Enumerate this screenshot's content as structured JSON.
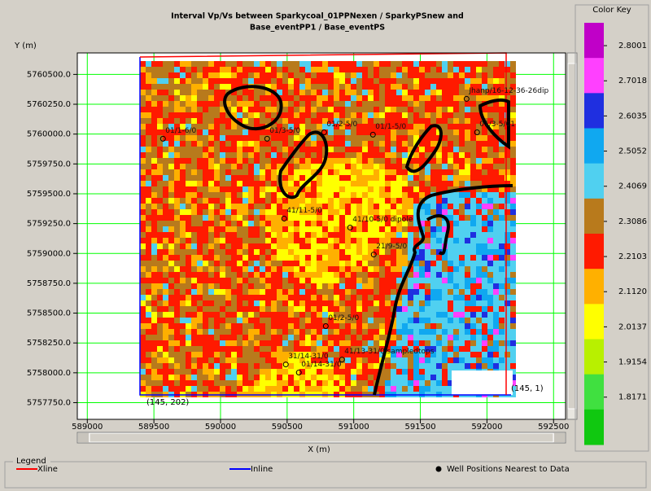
{
  "chart_data": {
    "type": "map",
    "title_lines": [
      "Interval Vp/Vs between Sparkycoal_01PPNexen / SparkyPSnew and",
      "Base_eventPP1 / Base_eventPS"
    ],
    "x_label": "X (m)",
    "y_label": "Y (m)",
    "xlim": [
      588925,
      592590
    ],
    "ylim": [
      5757610,
      5760680
    ],
    "xticks": [
      589000,
      589500,
      590000,
      590500,
      591000,
      591500,
      592000,
      592500
    ],
    "yticks": [
      {
        "value": 5757750,
        "label": "5757750.0"
      },
      {
        "value": 5758000,
        "label": "5758000.0"
      },
      {
        "value": 5758250,
        "label": "5758250.0"
      },
      {
        "value": 5758500,
        "label": "5758500.0"
      },
      {
        "value": 5758750,
        "label": "5758750.0"
      },
      {
        "value": 5759000,
        "label": "5759000.0"
      },
      {
        "value": 5759250,
        "label": "5759250.0"
      },
      {
        "value": 5759500,
        "label": "5759500.0"
      },
      {
        "value": 5759750,
        "label": "5759750.0"
      },
      {
        "value": 5760000,
        "label": "5760000.0"
      },
      {
        "value": 5760250,
        "label": "5760250.0"
      },
      {
        "value": 5760500,
        "label": "5760500.0"
      }
    ],
    "grid": true,
    "grid_color": "#00ff00",
    "corner_labels": [
      "(145, 1)",
      "(145, 202)"
    ],
    "wells": [
      {
        "label": "01/1-6/0",
        "x": 589568,
        "y": 5759961
      },
      {
        "label": "01/3-5/0",
        "x": 590350,
        "y": 5759961
      },
      {
        "label": "01/2-5/0",
        "x": 590778,
        "y": 5760015
      },
      {
        "label": "01/1-5/0",
        "x": 591144,
        "y": 5759995
      },
      {
        "label": "01/3-5/01",
        "x": 591926,
        "y": 5760015
      },
      {
        "label": "Jhanp/16-12-36-26dip",
        "x": 591847,
        "y": 5760295
      },
      {
        "label": "41/11-5/0",
        "x": 590478,
        "y": 5759292
      },
      {
        "label": "41/10-5/0 dipole",
        "x": 590973,
        "y": 5759217
      },
      {
        "label": "21/9-5/0",
        "x": 591150,
        "y": 5758991
      },
      {
        "label": "01/2-5/0",
        "x": 590790,
        "y": 5758391
      },
      {
        "label": "31/14-31/0",
        "x": 590490,
        "y": 5758070
      },
      {
        "label": "01/14-31/0",
        "x": 590588,
        "y": 5758002
      },
      {
        "label": "41/13-31/0 sampledtops",
        "x": 590912,
        "y": 5758111
      }
    ],
    "color_key": {
      "title": "Color Key",
      "ticks": [
        2.8001,
        2.7018,
        2.6035,
        2.5052,
        2.4069,
        2.3086,
        2.2103,
        2.112,
        2.0137,
        1.9154,
        1.8171
      ],
      "tick_labels": [
        "2.8001",
        "2.7018",
        "2.6035",
        "2.5052",
        "2.4069",
        "2.3086",
        "2.2103",
        "2.1120",
        "2.0137",
        "1.9154",
        "1.8171"
      ],
      "colors": [
        "#c000c8",
        "#ff40ff",
        "#1f2fe0",
        "#10a8f0",
        "#50d0f0",
        "#b87a1c",
        "#ff1a00",
        "#ffb000",
        "#ffff00",
        "#b8f000",
        "#40e040",
        "#10c810"
      ]
    },
    "legend": {
      "title": "Legend",
      "items": [
        {
          "name": "Xline",
          "color": "#ff0000"
        },
        {
          "name": "Inline",
          "color": "#0000ff"
        },
        {
          "name": "Well Positions Nearest to Data",
          "color": "#000000"
        }
      ]
    }
  }
}
